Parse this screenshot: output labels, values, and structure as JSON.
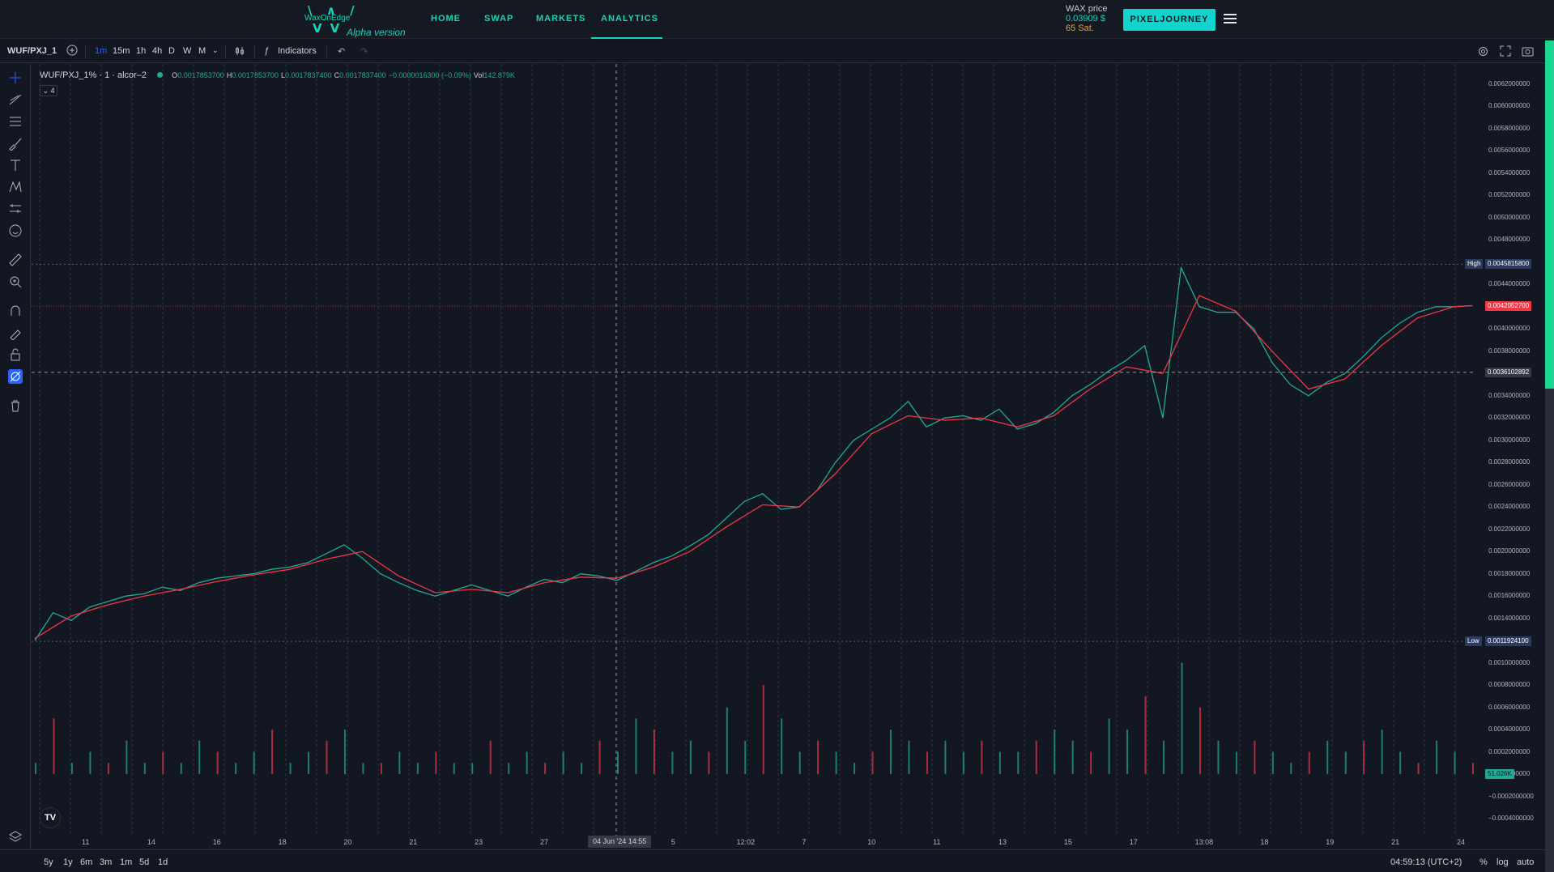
{
  "nav": {
    "logo_text": "WaxOnEdge",
    "logo_sub": "Alpha version",
    "links": [
      "HOME",
      "SWAP",
      "MARKETS",
      "ANALYTICS"
    ],
    "active": "ANALYTICS",
    "wax_price_label": "WAX price",
    "wax_price_usd": "0.03909 $",
    "wax_price_sat": "65 Sat.",
    "cta": "PIXELJOURNEY"
  },
  "toolbar": {
    "symbol": "WUF/PXJ_1",
    "intervals": [
      "1m",
      "15m",
      "1h",
      "4h",
      "D",
      "W",
      "M"
    ],
    "active_interval": "1m",
    "indicators": "Indicators"
  },
  "legend": {
    "symbol": "WUF/PXJ_1% · 1 · alcor–2",
    "o": "0.0017853700",
    "h": "0.0017853700",
    "l": "0.0017837400",
    "c": "0.0017837400",
    "change": "−0.0000016300 (−0.09%)",
    "vol": "142.879K",
    "collapse": "4"
  },
  "price_axis": {
    "ticks": [
      "0.0062000000",
      "0.0060000000",
      "0.0058000000",
      "0.0056000000",
      "0.0054000000",
      "0.0052000000",
      "0.0050000000",
      "0.0048000000",
      "0.0044000000",
      "0.0040000000",
      "0.0038000000",
      "0.0034000000",
      "0.0032000000",
      "0.0030000000",
      "0.0028000000",
      "0.0026000000",
      "0.0024000000",
      "0.0022000000",
      "0.0020000000",
      "0.0018000000",
      "0.0016000000",
      "0.0014000000",
      "0.0010000000",
      "0.0008000000",
      "0.0006000000",
      "0.0004000000",
      "0.0002000000",
      "0.0000000000",
      "−0.0002000000",
      "−0.0004000000"
    ],
    "high_label": "High",
    "high_value": "0.0045815800",
    "last_value": "0.0042052700",
    "crosshair_value": "0.0036102892",
    "low_label": "Low",
    "low_value": "0.0011924100",
    "vol_value": "51.026K",
    "colors": {
      "up": "#22ab94",
      "down": "#f23645",
      "high_tag": "#2a3b5e",
      "last_tag": "#f23645"
    }
  },
  "time_axis": {
    "labels": [
      "11",
      "14",
      "16",
      "18",
      "20",
      "21",
      "23",
      "27",
      "Jun",
      "5",
      "12:02",
      "7",
      "10",
      "11",
      "13",
      "15",
      "17",
      "13:08",
      "18",
      "19",
      "21",
      "24"
    ],
    "crosshair_time": "04 Jun '24  14:55"
  },
  "bottom": {
    "ranges": [
      "5y",
      "1y",
      "6m",
      "3m",
      "1m",
      "5d",
      "1d"
    ],
    "clock": "04:59:13 (UTC+2)",
    "percent": "%",
    "log": "log",
    "auto": "auto"
  },
  "chart_data": {
    "type": "line",
    "price_scale": [
      -0.0004,
      0.0062
    ],
    "series": [
      {
        "name": "",
        "color": "#22ab94",
        "x": [
          0,
          1,
          2,
          3,
          4,
          5,
          6,
          7,
          8,
          9,
          10,
          11,
          12,
          13,
          14,
          15,
          16,
          17,
          18,
          19,
          20,
          21,
          22,
          23,
          24,
          25,
          26,
          27,
          28,
          29,
          30,
          31,
          32,
          33,
          34,
          35,
          36,
          37,
          38,
          39,
          40,
          41,
          42,
          43,
          44,
          45,
          46,
          47,
          48,
          49,
          50,
          51,
          52,
          53,
          54,
          55,
          56,
          57,
          58,
          59,
          60,
          61,
          62,
          63,
          64,
          65,
          66,
          67,
          68,
          69,
          70,
          71,
          72,
          73,
          74,
          75,
          76,
          77,
          78,
          79
        ],
        "values": [
          0.0012,
          0.00145,
          0.00138,
          0.0015,
          0.00155,
          0.0016,
          0.00162,
          0.00168,
          0.00165,
          0.00172,
          0.00176,
          0.00178,
          0.0018,
          0.00184,
          0.00186,
          0.0019,
          0.00198,
          0.00206,
          0.00194,
          0.0018,
          0.00172,
          0.00165,
          0.0016,
          0.00165,
          0.0017,
          0.00165,
          0.0016,
          0.00168,
          0.00175,
          0.00172,
          0.0018,
          0.00178,
          0.00174,
          0.00182,
          0.0019,
          0.00196,
          0.00205,
          0.00215,
          0.0023,
          0.00245,
          0.00252,
          0.00238,
          0.0024,
          0.00255,
          0.0028,
          0.003,
          0.0031,
          0.0032,
          0.00335,
          0.00312,
          0.0032,
          0.00322,
          0.00318,
          0.00328,
          0.0031,
          0.00315,
          0.00325,
          0.0034,
          0.0035,
          0.00362,
          0.00372,
          0.00385,
          0.0032,
          0.00455,
          0.0042,
          0.00415,
          0.00415,
          0.004,
          0.0037,
          0.0035,
          0.0034,
          0.00352,
          0.0036,
          0.00375,
          0.00392,
          0.00405,
          0.00415,
          0.0042,
          0.0042,
          0.00421
        ]
      },
      {
        "name": "",
        "color": "#f23645",
        "x": [
          0,
          2,
          4,
          6,
          8,
          10,
          12,
          14,
          16,
          18,
          20,
          22,
          24,
          26,
          28,
          30,
          32,
          34,
          36,
          38,
          40,
          42,
          44,
          46,
          48,
          50,
          52,
          54,
          56,
          58,
          60,
          62,
          64,
          66,
          68,
          70,
          72,
          74,
          76,
          78,
          79
        ],
        "values": [
          0.00122,
          0.00142,
          0.00152,
          0.0016,
          0.00166,
          0.00173,
          0.00179,
          0.00184,
          0.00193,
          0.002,
          0.00178,
          0.00163,
          0.00166,
          0.00163,
          0.00172,
          0.00177,
          0.00176,
          0.00186,
          0.002,
          0.00222,
          0.00242,
          0.0024,
          0.0027,
          0.00306,
          0.00322,
          0.00318,
          0.0032,
          0.00312,
          0.00322,
          0.00346,
          0.00366,
          0.0036,
          0.0043,
          0.00416,
          0.0038,
          0.00346,
          0.00355,
          0.00385,
          0.0041,
          0.0042,
          0.00421
        ]
      }
    ],
    "volume": {
      "scale_max": 0.001,
      "values": [
        0.0001,
        0.0005,
        0.0001,
        0.0002,
        0.0001,
        0.0003,
        0.0001,
        0.0002,
        0.0001,
        0.0003,
        0.0002,
        0.0001,
        0.0002,
        0.0004,
        0.0001,
        0.0002,
        0.0003,
        0.0004,
        0.0001,
        0.0001,
        0.0002,
        0.0001,
        0.0002,
        0.0001,
        0.0001,
        0.0003,
        0.0001,
        0.0002,
        0.0001,
        0.0002,
        0.0001,
        0.0003,
        0.0002,
        0.0005,
        0.0004,
        0.0002,
        0.0003,
        0.0002,
        0.0006,
        0.0003,
        0.0008,
        0.0005,
        0.0002,
        0.0003,
        0.0002,
        0.0001,
        0.0002,
        0.0004,
        0.0003,
        0.0002,
        0.0003,
        0.0002,
        0.0003,
        0.0002,
        0.0002,
        0.0003,
        0.0004,
        0.0003,
        0.0002,
        0.0005,
        0.0004,
        0.0007,
        0.0003,
        0.001,
        0.0006,
        0.0003,
        0.0002,
        0.0003,
        0.0002,
        0.0001,
        0.0002,
        0.0003,
        0.0002,
        0.0003,
        0.0004,
        0.0002,
        0.0001,
        0.0003,
        0.0002,
        0.0001
      ]
    }
  }
}
